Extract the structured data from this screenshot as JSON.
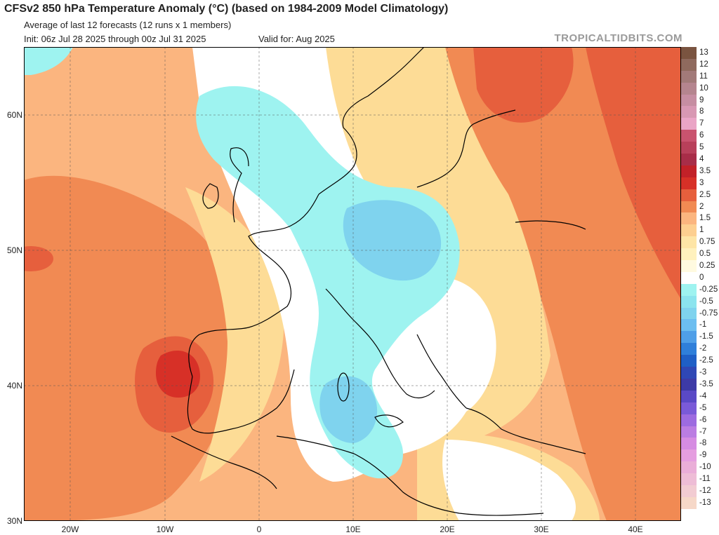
{
  "header": {
    "title": "CFSv2 850 hPa Temperature Anomaly (°C) (based on 1984-2009 Model Climatology)",
    "subtitle": "Average of last 12 forecasts (12 runs x 1 members)",
    "init": "Init: 06z Jul 28 2025 through 00z Jul 31 2025",
    "valid": "Valid for: Aug 2025",
    "brand": "TROPICALTIDBITS.COM"
  },
  "map": {
    "lat_labels": [
      "60N",
      "50N",
      "40N",
      "30N"
    ],
    "lon_labels": [
      "20W",
      "10W",
      "0",
      "10E",
      "20E",
      "30E",
      "40E"
    ],
    "colors": {
      "ocean_base": "#fbb57f",
      "warm_deep": "#e65f3d",
      "warm_mid": "#f18a53",
      "warm_light": "#fddc96",
      "neutral": "#ffffff",
      "cool_light": "#9ef3f0",
      "cool_mid": "#7fd3ee"
    }
  },
  "colorbar": [
    {
      "label": "13",
      "color": "#7a5440"
    },
    {
      "label": "12",
      "color": "#8f6a5e"
    },
    {
      "label": "11",
      "color": "#a27a79"
    },
    {
      "label": "10",
      "color": "#b5858f"
    },
    {
      "label": "9",
      "color": "#c68ea2"
    },
    {
      "label": "8",
      "color": "#d898b3"
    },
    {
      "label": "7",
      "color": "#eaa5c6"
    },
    {
      "label": "6",
      "color": "#c9536e"
    },
    {
      "label": "5",
      "color": "#b8405a"
    },
    {
      "label": "4",
      "color": "#a82d48"
    },
    {
      "label": "3.5",
      "color": "#c22128"
    },
    {
      "label": "3",
      "color": "#d73027"
    },
    {
      "label": "2.5",
      "color": "#e65f3d"
    },
    {
      "label": "2",
      "color": "#f18a53"
    },
    {
      "label": "1.5",
      "color": "#fbb57f"
    },
    {
      "label": "1",
      "color": "#fdcf90"
    },
    {
      "label": "0.75",
      "color": "#fee5a6"
    },
    {
      "label": "0.5",
      "color": "#fff1bd"
    },
    {
      "label": "0.25",
      "color": "#fffae0"
    },
    {
      "label": "0",
      "color": "#ffffff"
    },
    {
      "label": "-0.25",
      "color": "#9ef3f0"
    },
    {
      "label": "-0.5",
      "color": "#8be4ee"
    },
    {
      "label": "-0.75",
      "color": "#7fd3ee"
    },
    {
      "label": "-1",
      "color": "#6cbef0"
    },
    {
      "label": "-1.5",
      "color": "#4f9fe8"
    },
    {
      "label": "-2",
      "color": "#2f7fda"
    },
    {
      "label": "-2.5",
      "color": "#1f5fc6"
    },
    {
      "label": "-3",
      "color": "#2f47b5"
    },
    {
      "label": "-3.5",
      "color": "#3d3aa6"
    },
    {
      "label": "-4",
      "color": "#5a49c6"
    },
    {
      "label": "-5",
      "color": "#7a5ad8"
    },
    {
      "label": "-6",
      "color": "#9d6be0"
    },
    {
      "label": "-7",
      "color": "#bb7de2"
    },
    {
      "label": "-8",
      "color": "#d68ce2"
    },
    {
      "label": "-9",
      "color": "#e59ee0"
    },
    {
      "label": "-10",
      "color": "#eaaed8"
    },
    {
      "label": "-11",
      "color": "#eebdd6"
    },
    {
      "label": "-12",
      "color": "#f2ccd2"
    },
    {
      "label": "-13",
      "color": "#f6d8c8"
    }
  ]
}
